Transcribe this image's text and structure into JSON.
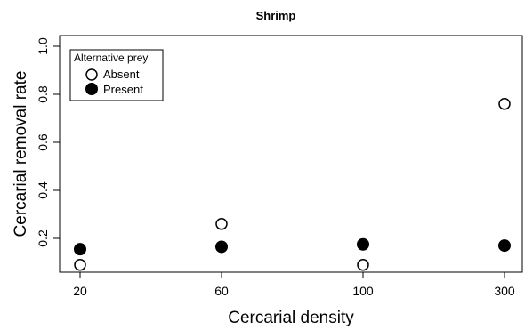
{
  "chart_data": {
    "type": "scatter",
    "title": "Shrimp",
    "xlabel": "Cercarial density",
    "ylabel": "Cercarial removal rate",
    "categories": [
      "20",
      "60",
      "100",
      "300"
    ],
    "y_ticks": [
      "0.2",
      "0.4",
      "0.6",
      "0.8",
      "1.0"
    ],
    "ylim": [
      0.07,
      1.0
    ],
    "grid": false,
    "legend": {
      "title": "Alternative prey",
      "placement": "top-left",
      "entries": [
        "Absent",
        "Present"
      ]
    },
    "series": [
      {
        "name": "Absent",
        "marker": "open-circle",
        "values": [
          0.09,
          0.26,
          0.09,
          0.76
        ]
      },
      {
        "name": "Present",
        "marker": "filled-circle",
        "values": [
          0.155,
          0.165,
          0.175,
          0.17
        ]
      }
    ],
    "colors": {
      "marker": "#000000",
      "open_fill": "#ffffff"
    }
  }
}
